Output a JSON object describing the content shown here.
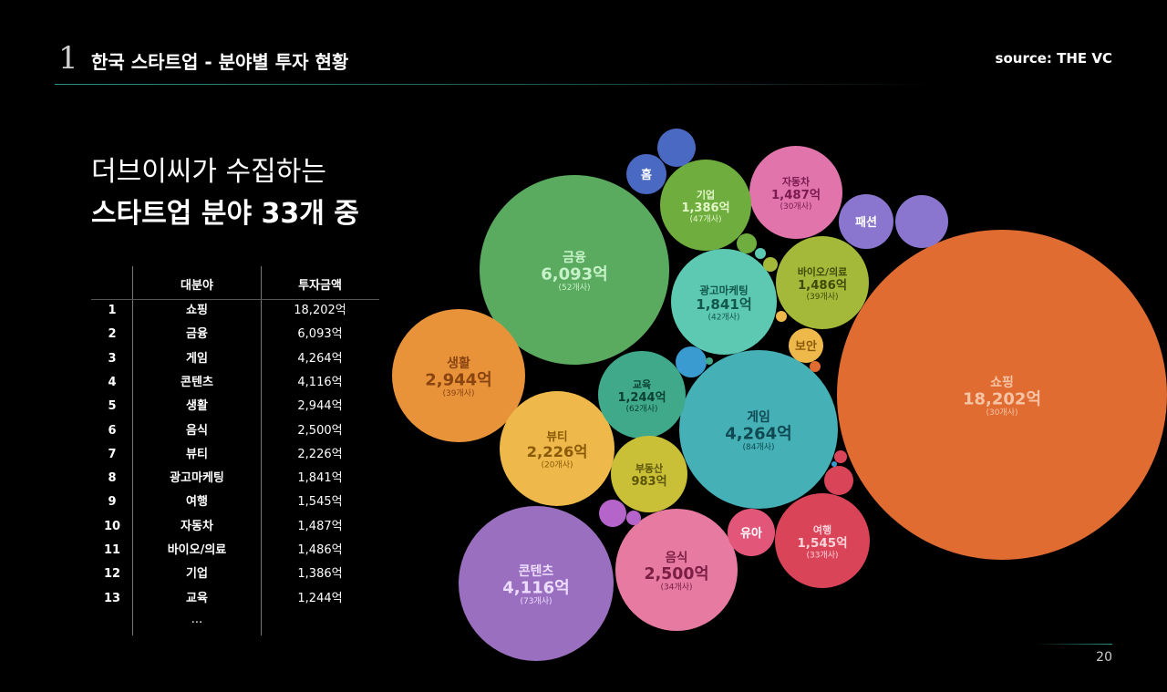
{
  "header": {
    "section_number": "1",
    "title": "한국 스타트업 - 분야별 투자 현황",
    "source": "source: THE VC"
  },
  "headline": {
    "line1": "더브이씨가 수집하는",
    "line2": "스타트업 분야 33개 중"
  },
  "table": {
    "columns": [
      "",
      "대분야",
      "투자금액"
    ],
    "rows": [
      {
        "rank": "1",
        "category": "쇼핑",
        "amount": "18,202억"
      },
      {
        "rank": "2",
        "category": "금융",
        "amount": "6,093억"
      },
      {
        "rank": "3",
        "category": "게임",
        "amount": "4,264억"
      },
      {
        "rank": "4",
        "category": "콘텐츠",
        "amount": "4,116억"
      },
      {
        "rank": "5",
        "category": "생활",
        "amount": "2,944억"
      },
      {
        "rank": "6",
        "category": "음식",
        "amount": "2,500억"
      },
      {
        "rank": "7",
        "category": "뷰티",
        "amount": "2,226억"
      },
      {
        "rank": "8",
        "category": "광고마케팅",
        "amount": "1,841억"
      },
      {
        "rank": "9",
        "category": "여행",
        "amount": "1,545억"
      },
      {
        "rank": "10",
        "category": "자동차",
        "amount": "1,487억"
      },
      {
        "rank": "11",
        "category": "바이오/의료",
        "amount": "1,486억"
      },
      {
        "rank": "12",
        "category": "기업",
        "amount": "1,386억"
      },
      {
        "rank": "13",
        "category": "교육",
        "amount": "1,244억"
      }
    ],
    "ellipsis": "..."
  },
  "chart_data": {
    "type": "bubble",
    "size_unit": "억",
    "bubbles": [
      {
        "name": "쇼핑",
        "value": 18202,
        "amount_label": "18,202억",
        "count_label": "(30개사)",
        "color": "#e06c32",
        "text_color": "#f6c4a4"
      },
      {
        "name": "금융",
        "value": 6093,
        "amount_label": "6,093억",
        "count_label": "(52개사)",
        "color": "#5aaa60",
        "text_color": "#c6f2c8"
      },
      {
        "name": "게임",
        "value": 4264,
        "amount_label": "4,264억",
        "count_label": "(84개사)",
        "color": "#45b0b6",
        "text_color": "#0f4a52"
      },
      {
        "name": "콘텐츠",
        "value": 4116,
        "amount_label": "4,116억",
        "count_label": "(73개사)",
        "color": "#9a6fc0",
        "text_color": "#ecdcff"
      },
      {
        "name": "생활",
        "value": 2944,
        "amount_label": "2,944억",
        "count_label": "(39개사)",
        "color": "#e8933a",
        "text_color": "#8a4410"
      },
      {
        "name": "음식",
        "value": 2500,
        "amount_label": "2,500억",
        "count_label": "(34개사)",
        "color": "#e67aa0",
        "text_color": "#7a1e44"
      },
      {
        "name": "뷰티",
        "value": 2226,
        "amount_label": "2,226억",
        "count_label": "(20개사)",
        "color": "#eeb94a",
        "text_color": "#8a5a08"
      },
      {
        "name": "광고마케팅",
        "value": 1841,
        "amount_label": "1,841억",
        "count_label": "(42개사)",
        "color": "#5ec9b2",
        "text_color": "#11584c"
      },
      {
        "name": "여행",
        "value": 1545,
        "amount_label": "1,545억",
        "count_label": "(33개사)",
        "color": "#d94458",
        "text_color": "#fbd3da"
      },
      {
        "name": "자동차",
        "value": 1487,
        "amount_label": "1,487억",
        "count_label": "(30개사)",
        "color": "#e074ab",
        "text_color": "#7a1a4e"
      },
      {
        "name": "바이오/의료",
        "value": 1486,
        "amount_label": "1,486억",
        "count_label": "(39개사)",
        "color": "#a4b83a",
        "text_color": "#3e4a08"
      },
      {
        "name": "기업",
        "value": 1386,
        "amount_label": "1,386억",
        "count_label": "(47개사)",
        "color": "#6fae3e",
        "text_color": "#e2f6c8"
      },
      {
        "name": "교육",
        "value": 1244,
        "amount_label": "1,244억",
        "count_label": "(62개사)",
        "color": "#3fa98a",
        "text_color": "#0b3f31"
      },
      {
        "name": "부동산",
        "value": 983,
        "amount_label": "983억",
        "count_label": "",
        "color": "#c9c038",
        "text_color": "#5b5408"
      },
      {
        "name": "홈",
        "color": "#4a69c3",
        "text_color": "#ffffff"
      },
      {
        "name": "패션",
        "color": "#8a76cf",
        "text_color": "#ffffff"
      },
      {
        "name": "보안",
        "color": "#eeb94a",
        "text_color": "#8a5a08"
      },
      {
        "name": "유아",
        "color": "#e2567a",
        "text_color": "#ffffff"
      },
      {
        "name": "",
        "color": "#4a69c3"
      },
      {
        "name": "",
        "color": "#8a76cf"
      },
      {
        "name": "",
        "color": "#3a9bd0"
      },
      {
        "name": "",
        "color": "#b565c9"
      },
      {
        "name": "",
        "color": "#d94458"
      },
      {
        "name": "",
        "color": "#6fae3e"
      },
      {
        "name": "",
        "color": "#a4b83a"
      },
      {
        "name": "",
        "color": "#b565c9"
      },
      {
        "name": "",
        "color": "#d94458"
      },
      {
        "name": "",
        "color": "#e06c32"
      },
      {
        "name": "",
        "color": "#5ec9b2"
      },
      {
        "name": "",
        "color": "#3fa98a"
      },
      {
        "name": "",
        "color": "#eeb94a"
      },
      {
        "name": "",
        "color": "#3a9bd0"
      }
    ]
  },
  "footer": {
    "page_number": "20"
  }
}
